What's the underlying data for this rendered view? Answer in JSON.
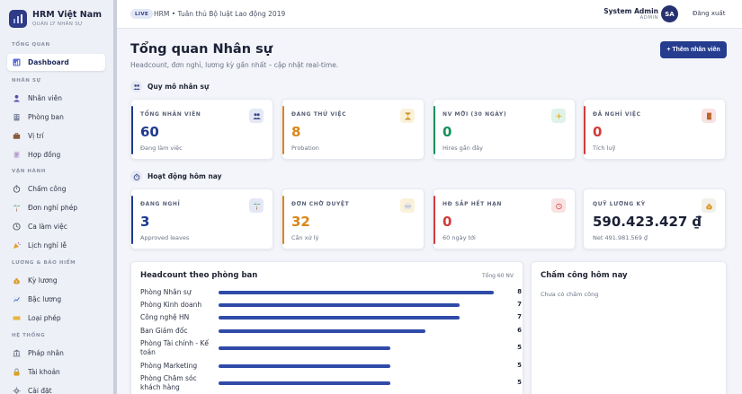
{
  "brand": {
    "title": "HRM Việt Nam",
    "subtitle": "QUẢN LÝ NHÂN SỰ"
  },
  "sidebar": {
    "sections": [
      {
        "label": "TỔNG QUAN",
        "items": [
          {
            "label": "Dashboard",
            "icon": "chart-icon",
            "active": true
          }
        ]
      },
      {
        "label": "NHÂN SỰ",
        "items": [
          {
            "label": "Nhân viên",
            "icon": "user-icon"
          },
          {
            "label": "Phòng ban",
            "icon": "building-icon"
          },
          {
            "label": "Vị trí",
            "icon": "briefcase-icon"
          },
          {
            "label": "Hợp đồng",
            "icon": "document-icon"
          }
        ]
      },
      {
        "label": "VẬN HÀNH",
        "items": [
          {
            "label": "Chấm công",
            "icon": "stopwatch-icon"
          },
          {
            "label": "Đơn nghỉ phép",
            "icon": "palm-tree-icon"
          },
          {
            "label": "Ca làm việc",
            "icon": "clock-icon"
          },
          {
            "label": "Lịch nghỉ lễ",
            "icon": "party-icon"
          }
        ]
      },
      {
        "label": "LƯƠNG & BẢO HIỂM",
        "items": [
          {
            "label": "Kỳ lương",
            "icon": "money-bag-icon"
          },
          {
            "label": "Bậc lương",
            "icon": "trend-chart-icon"
          },
          {
            "label": "Loại phép",
            "icon": "ticket-icon"
          }
        ]
      },
      {
        "label": "HỆ THỐNG",
        "items": [
          {
            "label": "Pháp nhân",
            "icon": "bank-icon"
          },
          {
            "label": "Tài khoản",
            "icon": "lock-icon"
          },
          {
            "label": "Cài đặt",
            "icon": "gear-icon"
          }
        ]
      }
    ]
  },
  "topbar": {
    "badge": "LIVE",
    "breadcrumb": "HRM • Tuân thủ Bộ luật Lao động 2019",
    "user_name": "System Admin",
    "user_role": "ADMIN",
    "avatar_initials": "SA",
    "logout_label": "Đăng xuất"
  },
  "main": {
    "title": "Tổng quan Nhân sự",
    "subtitle": "Headcount, đơn nghỉ, lương kỳ gần nhất – cập nhật real-time.",
    "add_button_label": "+ Thêm nhân viên",
    "section_scale": "Quy mô nhân sự",
    "section_today": "Hoạt động hôm nay"
  },
  "scale_cards": [
    {
      "label": "TỔNG NHÂN VIÊN",
      "value": "60",
      "note": "Đang làm việc",
      "color": "#1f3a8f",
      "icon": "people-icon",
      "icon_bg": "#e4e8f6"
    },
    {
      "label": "ĐANG THỬ VIỆC",
      "value": "8",
      "note": "Probation",
      "color": "#d9861a",
      "icon": "hourglass-icon",
      "icon_bg": "#fbf1d9"
    },
    {
      "label": "NV MỚI (30 NGÀY)",
      "value": "0",
      "note": "Hires gần đây",
      "color": "#14915a",
      "icon": "sparkle-icon",
      "icon_bg": "#dff3e8"
    },
    {
      "label": "ĐÃ NGHỈ VIỆC",
      "value": "0",
      "note": "Tích luỹ",
      "color": "#d33b3b",
      "icon": "door-icon",
      "icon_bg": "#f9e2e2"
    }
  ],
  "today_cards": [
    {
      "label": "ĐANG NGHỈ",
      "value": "3",
      "note": "Approved leaves",
      "color": "#1f3a8f",
      "icon": "palm-tree-icon",
      "icon_bg": "#e4e8f6"
    },
    {
      "label": "ĐƠN CHỜ DUYỆT",
      "value": "32",
      "note": "Cần xử lý",
      "color": "#d9861a",
      "icon": "inbox-icon",
      "icon_bg": "#fbf1d9"
    },
    {
      "label": "HĐ SẮP HẾT HẠN",
      "value": "0",
      "note": "60 ngày tới",
      "color": "#d33b3b",
      "icon": "alarm-icon",
      "icon_bg": "#f9e2e2"
    },
    {
      "label": "QUỸ LƯƠNG KỲ",
      "value": "590.423.427 ₫",
      "note": "Net 491.981.569 ₫",
      "color": "#1b2136",
      "icon": "money-bag-icon",
      "icon_bg": "#f3f0ea"
    }
  ],
  "headcount": {
    "title": "Headcount theo phòng ban",
    "total": "Tổng 60 NV",
    "max": 8,
    "departments": [
      {
        "name": "Phòng Nhân sự",
        "count": 8
      },
      {
        "name": "Phòng Kinh doanh",
        "count": 7
      },
      {
        "name": "Công nghệ HN",
        "count": 7
      },
      {
        "name": "Ban Giám đốc",
        "count": 6
      },
      {
        "name": "Phòng Tài chính - Kế toán",
        "count": 5
      },
      {
        "name": "Phòng Marketing",
        "count": 5
      },
      {
        "name": "Phòng Chăm sóc khách hàng",
        "count": 5
      }
    ]
  },
  "attendance": {
    "title": "Chấm công hôm nay",
    "empty": "Chưa có chấm công"
  }
}
